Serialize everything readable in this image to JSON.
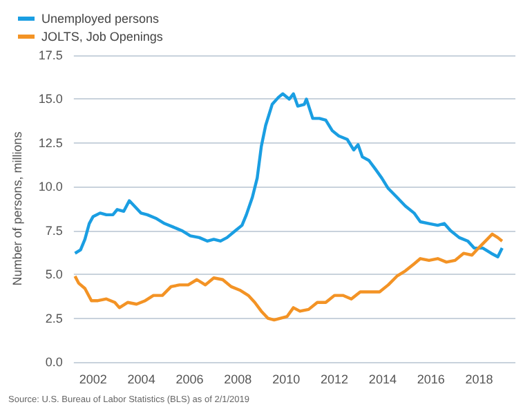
{
  "chart_data": {
    "type": "line",
    "ylabel": "Number of persons, millions",
    "legend": "top left",
    "grid": "y",
    "marker": "none",
    "xlim": [
      2001.2,
      2019.5
    ],
    "xticks": [
      2002,
      2004,
      2006,
      2008,
      2010,
      2012,
      2014,
      2016,
      2018
    ],
    "ylim": [
      0,
      17.5
    ],
    "yticks": [
      {
        "value": 0,
        "label": "0.0"
      },
      {
        "value": 2.5,
        "label": "2.5"
      },
      {
        "value": 5,
        "label": "5.0"
      },
      {
        "value": 7.5,
        "label": "7.5"
      },
      {
        "value": 10,
        "label": "10.0"
      },
      {
        "value": 12.5,
        "label": "12.5"
      },
      {
        "value": 15,
        "label": "15.0"
      },
      {
        "value": 17.5,
        "label": "17.5"
      }
    ],
    "annotations": [
      "Source: U.S. Bureau of Labor Statistics (BLS) as of 2/1/2019"
    ],
    "series": [
      {
        "name": "Unemployed persons",
        "color": "#1a9ee2",
        "x": [
          2001.25,
          2001.48,
          2001.66,
          2001.84,
          2002.0,
          2002.29,
          2002.55,
          2002.82,
          2003.0,
          2003.27,
          2003.5,
          2003.71,
          2003.98,
          2004.25,
          2004.6,
          2004.96,
          2005.32,
          2005.67,
          2006.03,
          2006.4,
          2006.74,
          2007.0,
          2007.28,
          2007.55,
          2007.9,
          2008.17,
          2008.35,
          2008.6,
          2008.8,
          2008.97,
          2009.15,
          2009.42,
          2009.68,
          2009.86,
          2010.13,
          2010.3,
          2010.48,
          2010.75,
          2010.84,
          2011.1,
          2011.38,
          2011.64,
          2011.91,
          2012.18,
          2012.53,
          2012.8,
          2012.98,
          2013.16,
          2013.43,
          2013.7,
          2013.96,
          2014.23,
          2014.59,
          2014.94,
          2015.3,
          2015.56,
          2015.92,
          2016.28,
          2016.55,
          2016.81,
          2017.17,
          2017.53,
          2017.79,
          2018.15,
          2018.5,
          2018.77,
          2018.95
        ],
        "values": [
          6.2,
          6.4,
          7.0,
          7.9,
          8.3,
          8.5,
          8.4,
          8.4,
          8.7,
          8.6,
          9.2,
          8.9,
          8.5,
          8.4,
          8.2,
          7.9,
          7.7,
          7.5,
          7.2,
          7.1,
          6.9,
          7.0,
          6.9,
          7.1,
          7.5,
          7.8,
          8.4,
          9.4,
          10.5,
          12.3,
          13.5,
          14.7,
          15.1,
          15.3,
          15.0,
          15.3,
          14.6,
          14.7,
          15.0,
          13.9,
          13.9,
          13.8,
          13.2,
          12.9,
          12.7,
          12.1,
          12.4,
          11.7,
          11.5,
          11.0,
          10.5,
          9.9,
          9.4,
          8.9,
          8.5,
          8.0,
          7.9,
          7.8,
          7.9,
          7.5,
          7.1,
          6.9,
          6.5,
          6.5,
          6.2,
          6.0,
          6.5
        ]
      },
      {
        "name": "JOLTS, Job Openings",
        "color": "#f39325",
        "x": [
          2001.25,
          2001.4,
          2001.66,
          2001.93,
          2002.2,
          2002.55,
          2002.9,
          2003.09,
          2003.44,
          2003.8,
          2004.16,
          2004.5,
          2004.87,
          2005.23,
          2005.58,
          2005.94,
          2006.3,
          2006.65,
          2007.0,
          2007.37,
          2007.72,
          2008.08,
          2008.43,
          2008.7,
          2008.97,
          2009.24,
          2009.5,
          2009.77,
          2010.04,
          2010.3,
          2010.57,
          2010.93,
          2011.29,
          2011.64,
          2012.0,
          2012.35,
          2012.7,
          2013.07,
          2013.51,
          2013.87,
          2014.23,
          2014.59,
          2014.94,
          2015.3,
          2015.56,
          2015.92,
          2016.28,
          2016.64,
          2017.0,
          2017.35,
          2017.7,
          2017.97,
          2018.33,
          2018.54,
          2018.77,
          2018.95
        ],
        "values": [
          4.9,
          4.5,
          4.2,
          3.5,
          3.5,
          3.6,
          3.4,
          3.1,
          3.4,
          3.3,
          3.5,
          3.8,
          3.8,
          4.3,
          4.4,
          4.4,
          4.7,
          4.4,
          4.8,
          4.7,
          4.3,
          4.1,
          3.8,
          3.4,
          2.9,
          2.5,
          2.4,
          2.5,
          2.6,
          3.1,
          2.9,
          3.0,
          3.4,
          3.4,
          3.8,
          3.8,
          3.6,
          4.0,
          4.0,
          4.0,
          4.4,
          4.9,
          5.2,
          5.6,
          5.9,
          5.8,
          5.9,
          5.7,
          5.8,
          6.2,
          6.1,
          6.5,
          7.0,
          7.3,
          7.1,
          6.9
        ]
      }
    ]
  }
}
